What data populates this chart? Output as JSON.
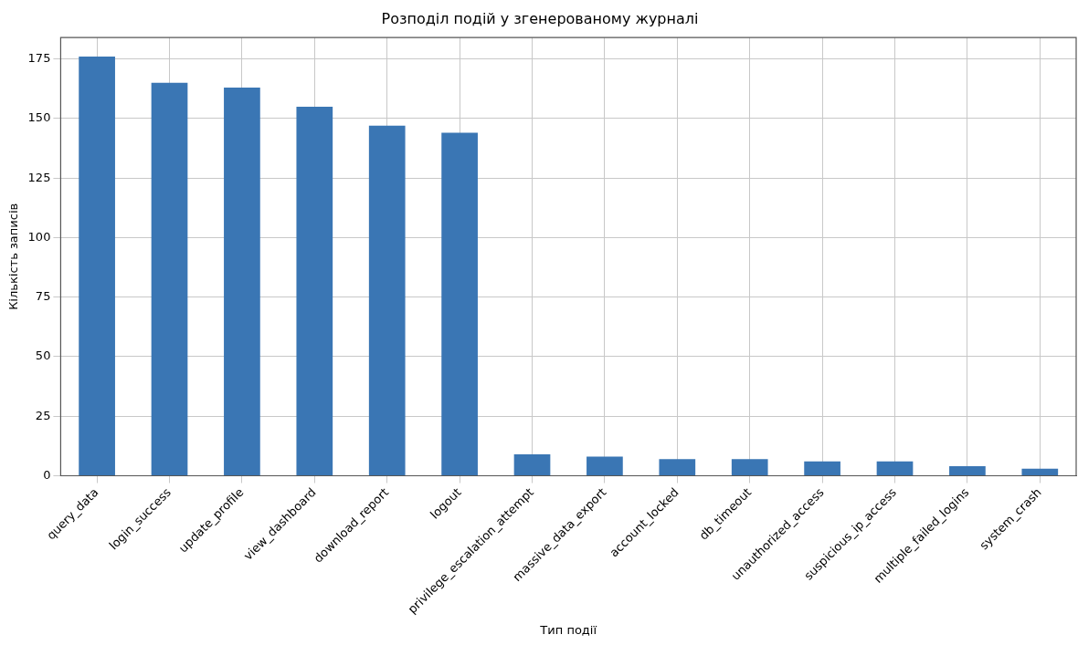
{
  "chart_data": {
    "type": "bar",
    "title": "Розподіл подій у згенерованому журналі",
    "xlabel": "Тип події",
    "ylabel": "Кількість записів",
    "categories": [
      "query_data",
      "login_success",
      "update_profile",
      "view_dashboard",
      "download_report",
      "logout",
      "privilege_escalation_attempt",
      "massive_data_export",
      "account_locked",
      "db_timeout",
      "unauthorized_access",
      "suspicious_ip_access",
      "multiple_failed_logins",
      "system_crash"
    ],
    "values": [
      176,
      165,
      163,
      155,
      147,
      144,
      9,
      8,
      7,
      7,
      6,
      6,
      4,
      3
    ],
    "color": "#3a76b4",
    "ylim": [
      0,
      184
    ],
    "yticks": [
      0,
      25,
      50,
      75,
      100,
      125,
      150,
      175
    ],
    "grid": true,
    "legend": false
  }
}
